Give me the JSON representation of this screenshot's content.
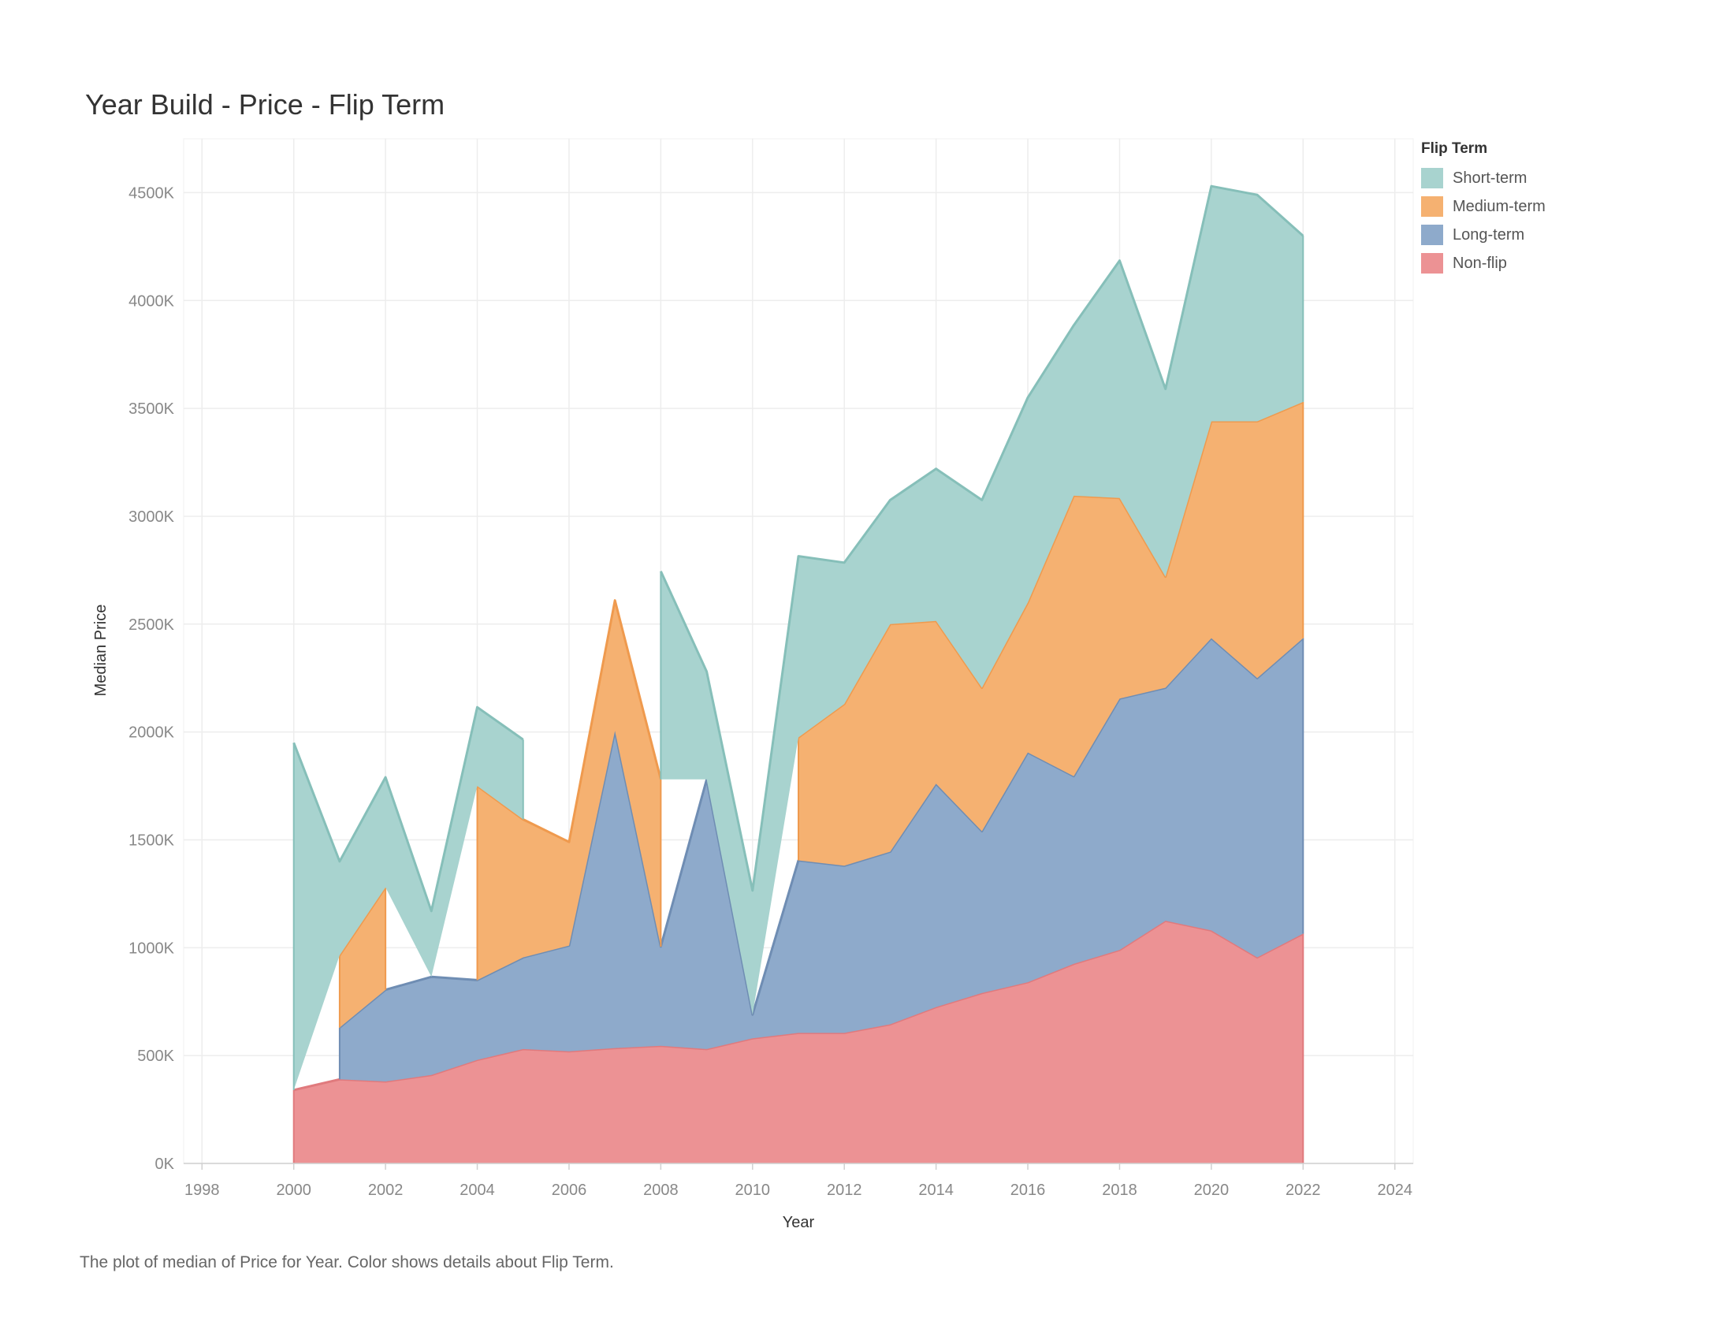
{
  "title": "Year Build - Price - Flip Term",
  "caption": "The plot of median of Price for Year.  Color shows details about Flip Term.",
  "legend": {
    "title": "Flip Term",
    "items": [
      {
        "label": "Short-term",
        "color": "#a8d3cf"
      },
      {
        "label": "Medium-term",
        "color": "#f5b171"
      },
      {
        "label": "Long-term",
        "color": "#8eaacb"
      },
      {
        "label": "Non-flip",
        "color": "#ec9294"
      }
    ]
  },
  "chart_data": {
    "type": "area",
    "stacked": true,
    "title": "Year Build - Price - Flip Term",
    "xlabel": "Year",
    "ylabel": "Median Price",
    "xlim": [
      1997.6,
      2024.4
    ],
    "ylim": [
      0,
      4750
    ],
    "x_ticks": [
      1998,
      2000,
      2002,
      2004,
      2006,
      2008,
      2010,
      2012,
      2014,
      2016,
      2018,
      2020,
      2022,
      2024
    ],
    "x_tick_labels": [
      "1998",
      "2000",
      "2002",
      "2004",
      "2006",
      "2008",
      "2010",
      "2012",
      "2014",
      "2016",
      "2018",
      "2020",
      "2022",
      "2024"
    ],
    "y_ticks": [
      0,
      500,
      1000,
      1500,
      2000,
      2500,
      3000,
      3500,
      4000,
      4500
    ],
    "y_tick_labels": [
      "0K",
      "500K",
      "1000K",
      "1500K",
      "2000K",
      "2500K",
      "3000K",
      "3500K",
      "4000K",
      "4500K"
    ],
    "grid": true,
    "legend_position": "right",
    "x": [
      2000,
      2001,
      2002,
      2003,
      2004,
      2005,
      2006,
      2007,
      2008,
      2009,
      2010,
      2011,
      2012,
      2013,
      2014,
      2015,
      2016,
      2017,
      2018,
      2019,
      2020,
      2021,
      2022
    ],
    "series": [
      {
        "name": "Non-flip",
        "color": "#ec9294",
        "stroke": "#e07a7d",
        "values": [
          340,
          390,
          380,
          410,
          480,
          530,
          520,
          535,
          545,
          530,
          580,
          605,
          605,
          645,
          725,
          790,
          840,
          925,
          990,
          1125,
          1080,
          955,
          1065
        ]
      },
      {
        "name": "Long-term",
        "color": "#8eaacb",
        "stroke": "#6f8db3",
        "values": [
          null,
          240,
          425,
          455,
          370,
          425,
          490,
          1470,
          460,
          1250,
          110,
          800,
          775,
          800,
          1035,
          750,
          1065,
          870,
          1165,
          1080,
          1355,
          1295,
          1370
        ]
      },
      {
        "name": "Medium-term",
        "color": "#f5b171",
        "stroke": "#ef9a4e",
        "values": [
          null,
          335,
          475,
          null,
          900,
          640,
          480,
          605,
          775,
          null,
          null,
          570,
          750,
          1055,
          755,
          665,
          695,
          1300,
          930,
          515,
          1005,
          1190,
          1095
        ]
      },
      {
        "name": "Short-term",
        "color": "#a8d3cf",
        "stroke": "#86bfb9",
        "values": [
          1610,
          435,
          510,
          305,
          365,
          370,
          null,
          null,
          965,
          500,
          575,
          840,
          655,
          575,
          705,
          870,
          950,
          790,
          1100,
          870,
          1090,
          1050,
          770
        ]
      }
    ]
  }
}
